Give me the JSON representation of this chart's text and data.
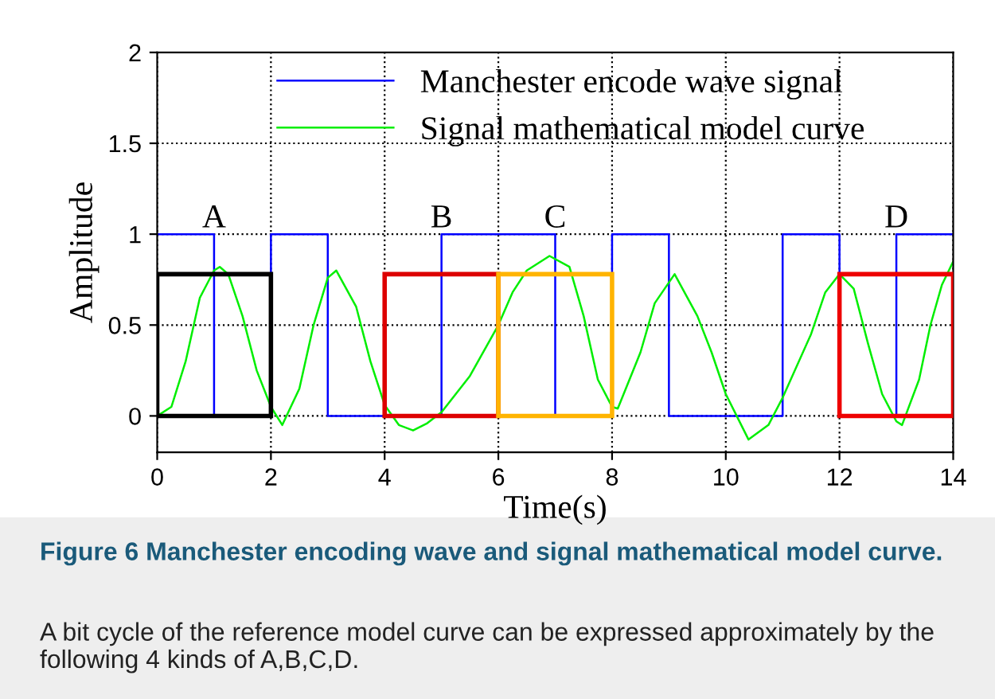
{
  "chart_data": {
    "type": "line",
    "xlabel": "Time(s)",
    "ylabel": "Amplitude",
    "xlim": [
      0,
      14
    ],
    "xticks": [
      0,
      2,
      4,
      6,
      8,
      10,
      12,
      14
    ],
    "ylim": [
      -0.2,
      2
    ],
    "yticks": [
      0,
      0.5,
      1,
      1.5,
      2
    ],
    "grid": true,
    "legend": "top",
    "series": [
      {
        "name": "Manchester encode wave signal",
        "type": "step",
        "color": "#0000ff",
        "x": [
          0,
          1,
          2,
          3,
          4,
          5,
          6,
          7,
          8,
          9,
          10,
          11,
          12,
          13,
          14
        ],
        "values": [
          1,
          0,
          1,
          0,
          0,
          1,
          1,
          0,
          1,
          0,
          0,
          1,
          0,
          1,
          1
        ]
      },
      {
        "name": "Signal mathematical model curve",
        "color": "#00ee00",
        "x": [
          0,
          0.25,
          0.5,
          0.75,
          1.0,
          1.1,
          1.25,
          1.5,
          1.75,
          2.0,
          2.2,
          2.5,
          2.75,
          3.0,
          3.15,
          3.5,
          3.75,
          4.0,
          4.25,
          4.5,
          4.75,
          5.0,
          5.5,
          6.0,
          6.25,
          6.5,
          6.9,
          7.25,
          7.5,
          7.75,
          8.0,
          8.1,
          8.5,
          8.75,
          9.1,
          9.5,
          9.75,
          10.0,
          10.4,
          10.75,
          11.0,
          11.5,
          11.75,
          12.0,
          12.25,
          12.5,
          12.75,
          13.0,
          13.1,
          13.4,
          13.6,
          13.8,
          14
        ],
        "values": [
          0,
          0.05,
          0.3,
          0.65,
          0.8,
          0.82,
          0.78,
          0.55,
          0.25,
          0.05,
          -0.05,
          0.15,
          0.5,
          0.76,
          0.8,
          0.6,
          0.3,
          0.06,
          -0.05,
          -0.08,
          -0.04,
          0.02,
          0.22,
          0.5,
          0.68,
          0.8,
          0.88,
          0.82,
          0.55,
          0.2,
          0.05,
          0.04,
          0.35,
          0.62,
          0.78,
          0.55,
          0.35,
          0.12,
          -0.13,
          -0.05,
          0.1,
          0.45,
          0.68,
          0.78,
          0.7,
          0.4,
          0.12,
          -0.03,
          -0.05,
          0.2,
          0.5,
          0.72,
          0.85
        ]
      },
      {
        "type": "bar",
        "colors": [
          "#000000",
          "#dd0000",
          "#ffb400",
          "#ee0000"
        ],
        "x": [
          1,
          5,
          7,
          13
        ],
        "values": [
          0.78,
          0.78,
          0.78,
          0.78
        ],
        "value_labels": [
          "A",
          "B",
          "C",
          "D"
        ]
      }
    ],
    "annotations": [
      "Figure 6 Manchester encoding wave and signal mathematical model curve.",
      "A bit cycle of the reference model curve can be expressed approximately by the following 4 kinds of A,B,C,D."
    ]
  }
}
